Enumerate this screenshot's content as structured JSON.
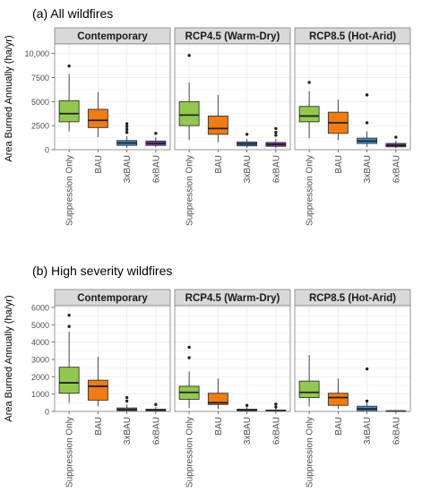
{
  "chart_data": [
    {
      "type": "boxplot",
      "title": "(a) All wildfires",
      "ylabel": "Area Burned Annually (ha/yr)",
      "ylim": [
        0,
        11000
      ],
      "yticks": [
        0,
        2500,
        5000,
        7500,
        10000
      ],
      "ytick_labels": [
        "0",
        "2500",
        "5000",
        "7500",
        "10,000"
      ],
      "categories": [
        "Suppression Only",
        "BAU",
        "3xBAU",
        "6xBAU"
      ],
      "grid": true,
      "facets": [
        {
          "label": "Contemporary",
          "boxes": [
            {
              "category": "Suppression Only",
              "min": 1900,
              "q1": 2900,
              "median": 3750,
              "q3": 5100,
              "max": 7900,
              "outliers": [
                8700
              ]
            },
            {
              "category": "BAU",
              "min": 1300,
              "q1": 2300,
              "median": 3050,
              "q3": 4200,
              "max": 6000,
              "outliers": []
            },
            {
              "category": "3xBAU",
              "min": 200,
              "q1": 450,
              "median": 700,
              "q3": 950,
              "max": 1400,
              "outliers": [
                1800,
                2100,
                2400,
                2700
              ]
            },
            {
              "category": "6xBAU",
              "min": 250,
              "q1": 450,
              "median": 650,
              "q3": 900,
              "max": 1300,
              "outliers": [
                1700
              ]
            }
          ]
        },
        {
          "label": "RCP4.5 (Warm-Dry)",
          "boxes": [
            {
              "category": "Suppression Only",
              "min": 1000,
              "q1": 2500,
              "median": 3600,
              "q3": 5000,
              "max": 7000,
              "outliers": [
                9800
              ]
            },
            {
              "category": "BAU",
              "min": 800,
              "q1": 1600,
              "median": 2200,
              "q3": 3500,
              "max": 5700,
              "outliers": []
            },
            {
              "category": "3xBAU",
              "min": 200,
              "q1": 400,
              "median": 600,
              "q3": 800,
              "max": 1100,
              "outliers": [
                1600
              ]
            },
            {
              "category": "6xBAU",
              "min": 150,
              "q1": 350,
              "median": 550,
              "q3": 750,
              "max": 1100,
              "outliers": [
                1500,
                1800,
                2200
              ]
            }
          ]
        },
        {
          "label": "RCP8.5 (Hot-Arid)",
          "boxes": [
            {
              "category": "Suppression Only",
              "min": 1200,
              "q1": 2900,
              "median": 3500,
              "q3": 4500,
              "max": 6100,
              "outliers": [
                7000
              ]
            },
            {
              "category": "BAU",
              "min": 1000,
              "q1": 1700,
              "median": 2800,
              "q3": 3900,
              "max": 5200,
              "outliers": []
            },
            {
              "category": "3xBAU",
              "min": 300,
              "q1": 650,
              "median": 900,
              "q3": 1200,
              "max": 1900,
              "outliers": [
                2800,
                5700
              ]
            },
            {
              "category": "6xBAU",
              "min": 150,
              "q1": 300,
              "median": 450,
              "q3": 650,
              "max": 950,
              "outliers": [
                1300
              ]
            }
          ]
        }
      ]
    },
    {
      "type": "boxplot",
      "title": "(b) High severity wildfires",
      "ylabel": "Area Burned Annually (ha/yr)",
      "ylim": [
        0,
        6100
      ],
      "yticks": [
        0,
        1000,
        2000,
        3000,
        4000,
        5000,
        6000
      ],
      "ytick_labels": [
        "0",
        "1000",
        "2000",
        "3000",
        "4000",
        "5000",
        "6000"
      ],
      "categories": [
        "Suppression Only",
        "BAU",
        "3xBAU",
        "6xBAU"
      ],
      "grid": true,
      "facets": [
        {
          "label": "Contemporary",
          "boxes": [
            {
              "category": "Suppression Only",
              "min": 500,
              "q1": 1050,
              "median": 1650,
              "q3": 2550,
              "max": 4600,
              "outliers": [
                4900,
                5550
              ]
            },
            {
              "category": "BAU",
              "min": 300,
              "q1": 650,
              "median": 1450,
              "q3": 1800,
              "max": 3150,
              "outliers": []
            },
            {
              "category": "3xBAU",
              "min": 0,
              "q1": 50,
              "median": 100,
              "q3": 200,
              "max": 400,
              "outliers": [
                600,
                800
              ]
            },
            {
              "category": "6xBAU",
              "min": 0,
              "q1": 20,
              "median": 60,
              "q3": 130,
              "max": 250,
              "outliers": [
                400
              ]
            }
          ]
        },
        {
          "label": "RCP4.5 (Warm-Dry)",
          "boxes": [
            {
              "category": "Suppression Only",
              "min": 200,
              "q1": 700,
              "median": 1100,
              "q3": 1450,
              "max": 2300,
              "outliers": [
                3100,
                3700
              ]
            },
            {
              "category": "BAU",
              "min": 150,
              "q1": 400,
              "median": 500,
              "q3": 1050,
              "max": 1900,
              "outliers": []
            },
            {
              "category": "3xBAU",
              "min": 0,
              "q1": 30,
              "median": 70,
              "q3": 130,
              "max": 250,
              "outliers": [
                350
              ]
            },
            {
              "category": "6xBAU",
              "min": 0,
              "q1": 10,
              "median": 40,
              "q3": 80,
              "max": 180,
              "outliers": [
                250,
                420
              ]
            }
          ]
        },
        {
          "label": "RCP8.5 (Hot-Arid)",
          "boxes": [
            {
              "category": "Suppression Only",
              "min": 300,
              "q1": 800,
              "median": 1100,
              "q3": 1750,
              "max": 3250,
              "outliers": []
            },
            {
              "category": "BAU",
              "min": 150,
              "q1": 350,
              "median": 800,
              "q3": 1050,
              "max": 1900,
              "outliers": []
            },
            {
              "category": "3xBAU",
              "min": 0,
              "q1": 50,
              "median": 150,
              "q3": 300,
              "max": 500,
              "outliers": [
                600,
                2450
              ]
            },
            {
              "category": "6xBAU",
              "min": 0,
              "q1": 0,
              "median": 20,
              "q3": 40,
              "max": 80,
              "outliers": []
            }
          ]
        }
      ]
    }
  ],
  "colors": {
    "Suppression Only": "#92c84f",
    "BAU": "#ef7c14",
    "3xBAU": "#3f8fd6",
    "6xBAU": "#8d32c2",
    "strip_fill": "#d9d9d9",
    "grid": "#ebebeb",
    "frame": "#7f7f7f"
  }
}
